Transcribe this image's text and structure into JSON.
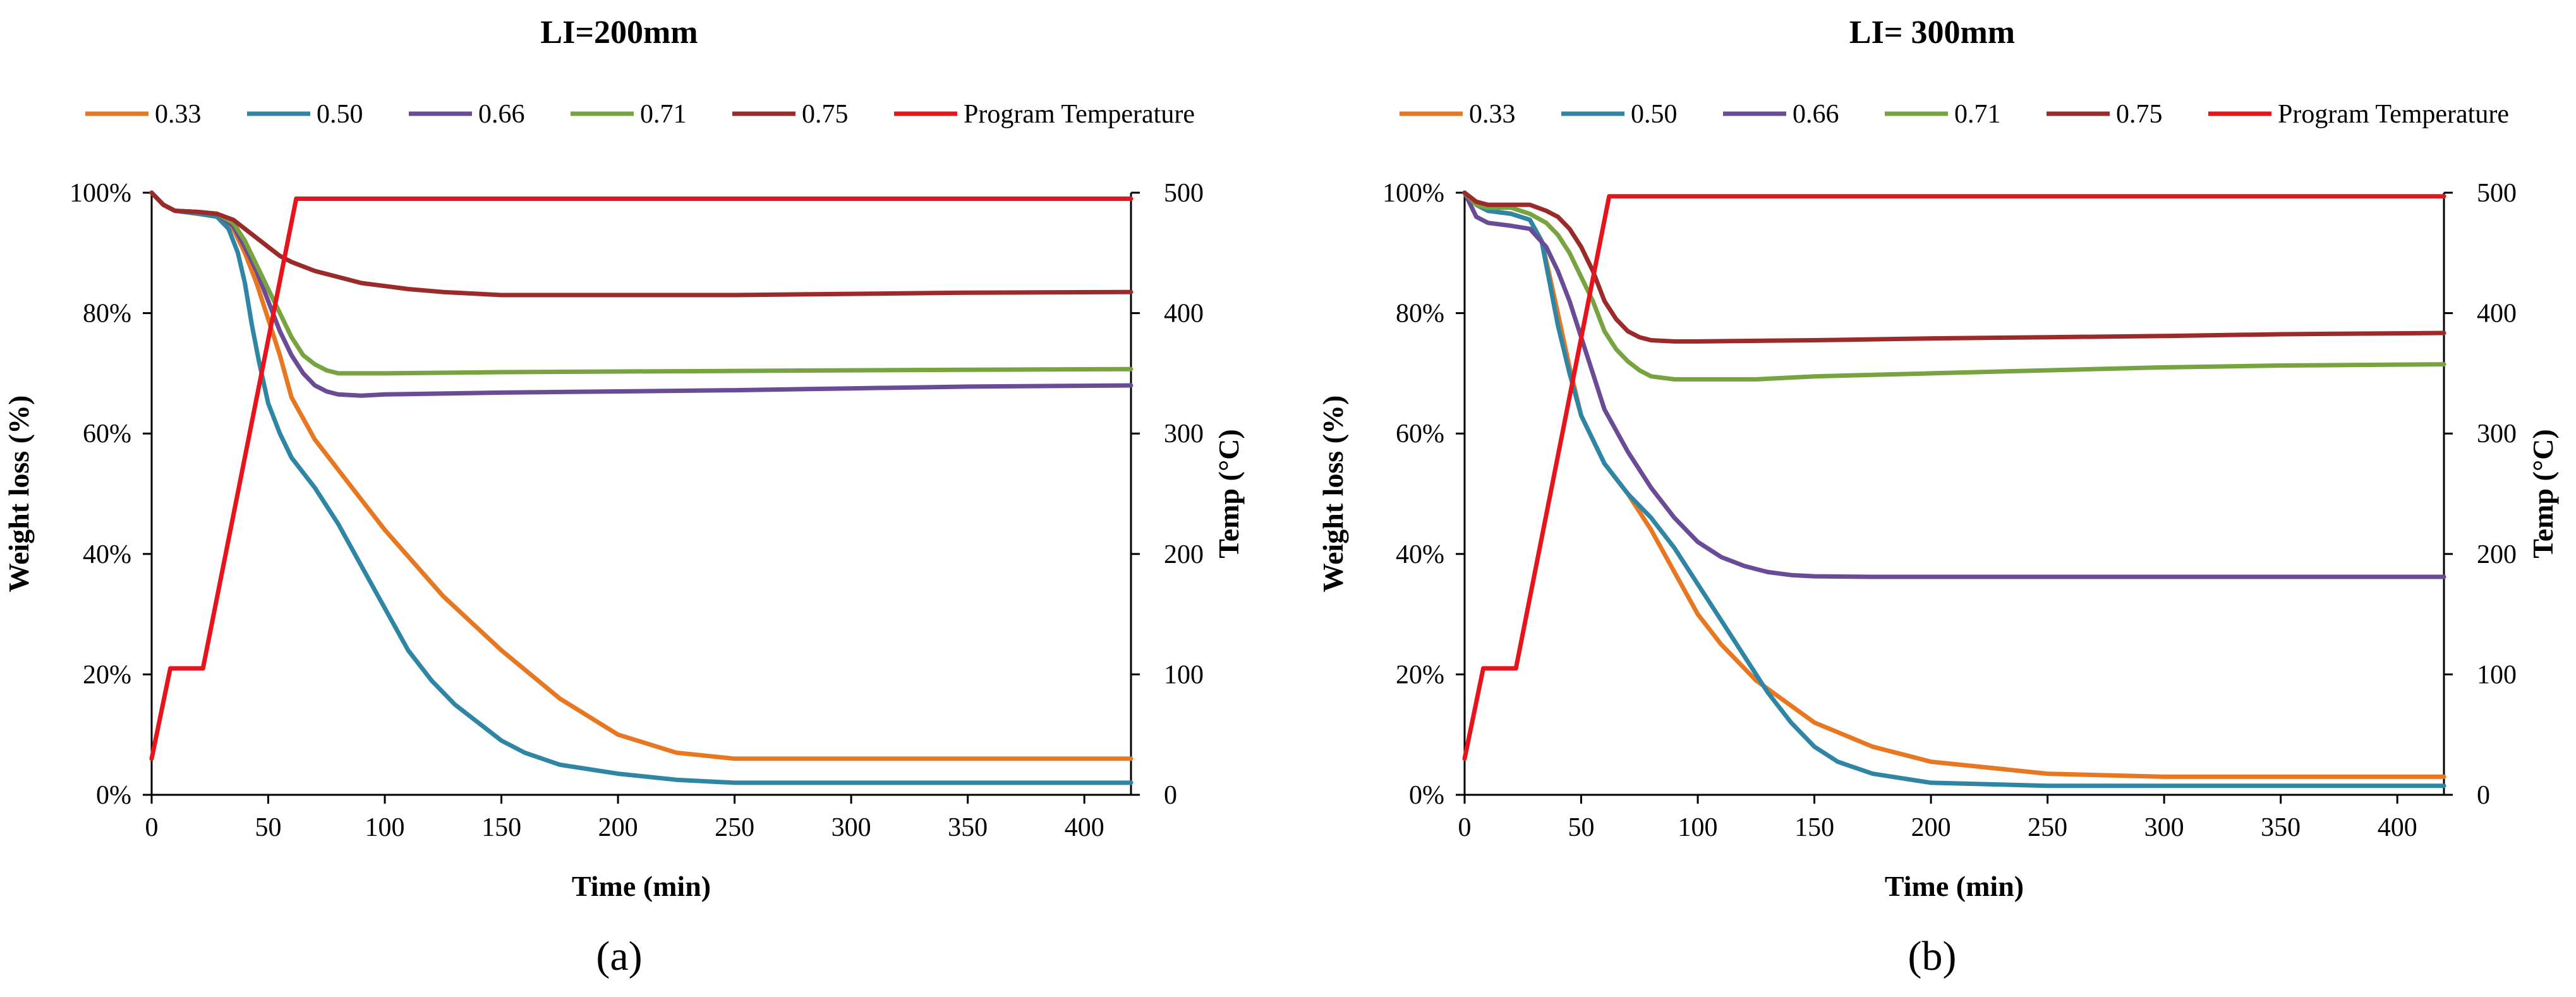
{
  "figure": {
    "panel_labels": [
      "(a)",
      "(b)"
    ]
  },
  "chart_data": [
    {
      "type": "line",
      "title": "LI=200mm",
      "panel_label": "(a)",
      "xlabel": "Time (min)",
      "ylabel": "Weight loss (%)",
      "y2label": "Temp (°C)",
      "xlim": [
        0,
        420
      ],
      "ylim": [
        0,
        100
      ],
      "y2lim": [
        0,
        500
      ],
      "xticks": [
        0,
        50,
        100,
        150,
        200,
        250,
        300,
        350,
        400
      ],
      "yticks": [
        0,
        20,
        40,
        60,
        80,
        100
      ],
      "y2ticks": [
        0,
        100,
        200,
        300,
        400,
        500
      ],
      "xtick_labels": [
        "0",
        "50",
        "100",
        "150",
        "200",
        "250",
        "300",
        "350",
        "400"
      ],
      "ytick_labels": [
        "0%",
        "20%",
        "40%",
        "60%",
        "80%",
        "100%"
      ],
      "y2tick_labels": [
        "0",
        "100",
        "200",
        "300",
        "400",
        "500"
      ],
      "series": [
        {
          "name": "0.33",
          "color": "#e87722",
          "axis": "left",
          "x": [
            0,
            5,
            10,
            20,
            28,
            35,
            40,
            45,
            50,
            55,
            60,
            70,
            80,
            100,
            125,
            150,
            175,
            200,
            225,
            250,
            300,
            350,
            420
          ],
          "y": [
            100,
            98,
            97,
            96.8,
            96.5,
            94,
            90,
            85,
            79,
            73,
            66,
            59,
            54,
            44,
            33,
            24,
            16,
            10,
            7,
            6,
            6,
            6,
            6
          ]
        },
        {
          "name": "0.50",
          "color": "#2e86a4",
          "axis": "left",
          "x": [
            0,
            5,
            10,
            20,
            28,
            33,
            37,
            40,
            43,
            46,
            50,
            55,
            60,
            70,
            80,
            90,
            100,
            110,
            120,
            130,
            140,
            150,
            160,
            175,
            200,
            225,
            250,
            300,
            350,
            420
          ],
          "y": [
            100,
            98,
            97,
            96.5,
            96,
            94,
            90,
            85,
            78,
            72,
            65,
            60,
            56,
            51,
            45,
            38,
            31,
            24,
            19,
            15,
            12,
            9,
            7,
            5,
            3.5,
            2.5,
            2,
            2,
            2,
            2
          ]
        },
        {
          "name": "0.66",
          "color": "#6a4b96",
          "axis": "left",
          "x": [
            0,
            5,
            10,
            20,
            28,
            35,
            40,
            45,
            50,
            55,
            60,
            65,
            70,
            75,
            80,
            90,
            100,
            150,
            200,
            250,
            300,
            350,
            420
          ],
          "y": [
            100,
            98,
            97,
            96.8,
            96.5,
            94.5,
            91,
            87,
            82,
            77,
            73,
            70,
            68,
            67,
            66.5,
            66.3,
            66.5,
            66.8,
            67,
            67.2,
            67.5,
            67.8,
            68
          ]
        },
        {
          "name": "0.71",
          "color": "#77a340",
          "axis": "left",
          "x": [
            0,
            5,
            10,
            20,
            28,
            35,
            40,
            45,
            50,
            55,
            60,
            65,
            70,
            75,
            80,
            90,
            100,
            150,
            200,
            250,
            300,
            350,
            420
          ],
          "y": [
            100,
            98,
            97,
            96.8,
            96.5,
            95,
            92,
            88,
            84,
            80,
            76,
            73,
            71.5,
            70.5,
            70,
            70,
            70,
            70.2,
            70.3,
            70.4,
            70.5,
            70.6,
            70.7
          ]
        },
        {
          "name": "0.75",
          "color": "#9b2b2b",
          "axis": "left",
          "x": [
            0,
            5,
            10,
            20,
            28,
            35,
            40,
            45,
            50,
            55,
            60,
            70,
            80,
            90,
            100,
            110,
            125,
            150,
            200,
            250,
            300,
            350,
            420
          ],
          "y": [
            100,
            98,
            97,
            96.8,
            96.5,
            95.5,
            94,
            92.5,
            91,
            89.5,
            88.5,
            87,
            86,
            85,
            84.5,
            84,
            83.5,
            83,
            83,
            83,
            83.2,
            83.4,
            83.5
          ]
        },
        {
          "name": "Program Temperature",
          "color": "#e8141c",
          "axis": "right",
          "x": [
            0,
            8,
            22,
            62,
            420
          ],
          "y": [
            30,
            105,
            105,
            495,
            495
          ]
        }
      ]
    },
    {
      "type": "line",
      "title": "LI= 300mm",
      "panel_label": "(b)",
      "xlabel": "Time (min)",
      "ylabel": "Weight loss (%)",
      "y2label": "Temp (°C)",
      "xlim": [
        0,
        420
      ],
      "ylim": [
        0,
        100
      ],
      "y2lim": [
        0,
        500
      ],
      "xticks": [
        0,
        50,
        100,
        150,
        200,
        250,
        300,
        350,
        400
      ],
      "yticks": [
        0,
        20,
        40,
        60,
        80,
        100
      ],
      "y2ticks": [
        0,
        100,
        200,
        300,
        400,
        500
      ],
      "xtick_labels": [
        "0",
        "50",
        "100",
        "150",
        "200",
        "250",
        "300",
        "350",
        "400"
      ],
      "ytick_labels": [
        "0%",
        "20%",
        "40%",
        "60%",
        "80%",
        "100%"
      ],
      "y2tick_labels": [
        "0",
        "100",
        "200",
        "300",
        "400",
        "500"
      ],
      "series": [
        {
          "name": "0.33",
          "color": "#e87722",
          "axis": "left",
          "x": [
            0,
            5,
            10,
            20,
            28,
            33,
            36,
            40,
            45,
            50,
            60,
            70,
            80,
            90,
            100,
            110,
            125,
            150,
            175,
            200,
            250,
            300,
            350,
            420
          ],
          "y": [
            100,
            98,
            97,
            96.5,
            95.5,
            92,
            87,
            80,
            71,
            63,
            55,
            50,
            44,
            37,
            30,
            25,
            19,
            12,
            8,
            5.5,
            3.5,
            3,
            3,
            3
          ]
        },
        {
          "name": "0.50",
          "color": "#2e86a4",
          "axis": "left",
          "x": [
            0,
            5,
            10,
            20,
            28,
            33,
            36,
            40,
            45,
            50,
            60,
            70,
            80,
            90,
            100,
            110,
            120,
            130,
            140,
            150,
            160,
            175,
            200,
            250,
            300,
            350,
            420
          ],
          "y": [
            100,
            98,
            97,
            96.5,
            95.5,
            92,
            86,
            78,
            70,
            63,
            55,
            50,
            46,
            41,
            35,
            29,
            23,
            17,
            12,
            8,
            5.5,
            3.5,
            2,
            1.5,
            1.5,
            1.5,
            1.5
          ]
        },
        {
          "name": "0.66",
          "color": "#6a4b96",
          "axis": "left",
          "x": [
            0,
            5,
            10,
            20,
            28,
            35,
            40,
            45,
            50,
            55,
            60,
            70,
            80,
            90,
            100,
            110,
            120,
            130,
            140,
            150,
            175,
            200,
            250,
            300,
            350,
            420
          ],
          "y": [
            100,
            96,
            95,
            94.5,
            94,
            91,
            87,
            82,
            76,
            70,
            64,
            57,
            51,
            46,
            42,
            39.5,
            38,
            37,
            36.5,
            36.3,
            36.2,
            36.2,
            36.2,
            36.2,
            36.2,
            36.2
          ]
        },
        {
          "name": "0.71",
          "color": "#77a340",
          "axis": "left",
          "x": [
            0,
            5,
            10,
            20,
            28,
            35,
            40,
            45,
            50,
            55,
            60,
            65,
            70,
            75,
            80,
            90,
            100,
            125,
            150,
            200,
            250,
            300,
            350,
            420
          ],
          "y": [
            100,
            98,
            97.5,
            97.5,
            96.5,
            95,
            93,
            90,
            86,
            82,
            77,
            74,
            72,
            70.5,
            69.5,
            69,
            69,
            69,
            69.5,
            70,
            70.5,
            71,
            71.3,
            71.5
          ]
        },
        {
          "name": "0.75",
          "color": "#9b2b2b",
          "axis": "left",
          "x": [
            0,
            5,
            10,
            20,
            28,
            35,
            40,
            45,
            50,
            55,
            60,
            65,
            70,
            75,
            80,
            90,
            100,
            150,
            200,
            250,
            300,
            350,
            420
          ],
          "y": [
            100,
            98.5,
            98,
            98,
            98,
            97,
            96,
            94,
            91,
            87,
            82,
            79,
            77,
            76,
            75.5,
            75.3,
            75.3,
            75.5,
            75.8,
            76,
            76.2,
            76.5,
            76.7
          ]
        },
        {
          "name": "Program Temperature",
          "color": "#e8141c",
          "axis": "right",
          "x": [
            0,
            8,
            22,
            62,
            420
          ],
          "y": [
            30,
            105,
            105,
            497,
            497
          ]
        }
      ]
    }
  ]
}
